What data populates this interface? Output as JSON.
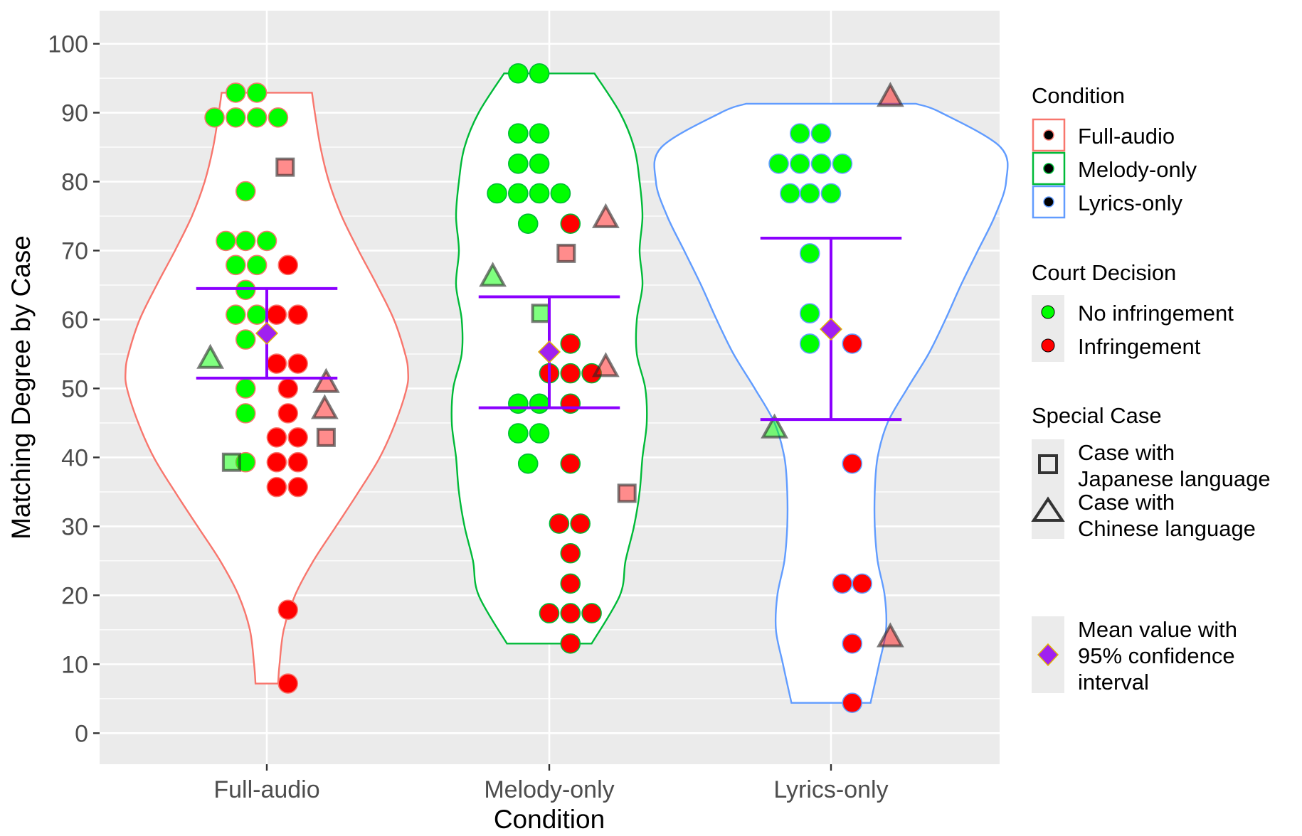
{
  "chart_data": {
    "type": "violin",
    "xlabel": "Condition",
    "ylabel": "Matching Degree by Case",
    "ylim": [
      -4.5,
      104.8
    ],
    "yticks": [
      0,
      10,
      20,
      30,
      40,
      50,
      60,
      70,
      80,
      90,
      100
    ],
    "categories": [
      "Full-audio",
      "Melody-only",
      "Lyrics-only"
    ],
    "grid": true,
    "legend_position": "right",
    "colors": {
      "Full-audio": "#f8766d",
      "Melody-only": "#00ba38",
      "Lyrics-only": "#619cff",
      "no_infringement": "#00ff00",
      "infringement": "#ff0000",
      "mean": "#a020f0",
      "ci": "#8b00ff",
      "panel_bg": "#ebebeb"
    },
    "violins": [
      {
        "condition": "Full-audio",
        "y": [
          7.2,
          10,
          15,
          20,
          25,
          30,
          35,
          40,
          45,
          50,
          52.5,
          55,
          60,
          65,
          70,
          75,
          80,
          85,
          90,
          92.9
        ],
        "half_width": [
          0.04,
          0.045,
          0.06,
          0.1,
          0.165,
          0.245,
          0.325,
          0.4,
          0.455,
          0.495,
          0.5,
          0.49,
          0.45,
          0.39,
          0.325,
          0.265,
          0.22,
          0.19,
          0.17,
          0.16
        ]
      },
      {
        "condition": "Melody-only",
        "y": [
          13,
          20,
          25,
          30,
          35,
          40,
          45,
          50,
          55,
          60,
          65,
          70,
          75,
          80,
          85,
          90,
          95.7
        ],
        "half_width": [
          0.15,
          0.25,
          0.27,
          0.3,
          0.32,
          0.33,
          0.345,
          0.34,
          0.31,
          0.31,
          0.33,
          0.32,
          0.33,
          0.32,
          0.3,
          0.25,
          0.16
        ]
      },
      {
        "condition": "Lyrics-only",
        "y": [
          4.4,
          10,
          15,
          20,
          25,
          30,
          35,
          40,
          45,
          50,
          55,
          60,
          65,
          70,
          75,
          80,
          85,
          90,
          91.3
        ],
        "half_width": [
          0.14,
          0.17,
          0.195,
          0.19,
          0.165,
          0.155,
          0.155,
          0.165,
          0.2,
          0.27,
          0.345,
          0.405,
          0.46,
          0.52,
          0.58,
          0.62,
          0.6,
          0.39,
          0.3
        ]
      }
    ],
    "summaries": [
      {
        "condition": "Full-audio",
        "mean": 58,
        "ci_low": 51.5,
        "ci_high": 64.5
      },
      {
        "condition": "Melody-only",
        "mean": 55.3,
        "ci_low": 47.2,
        "ci_high": 63.3
      },
      {
        "condition": "Lyrics-only",
        "mean": 58.6,
        "ci_low": 45.5,
        "ci_high": 71.8
      }
    ],
    "points": [
      {
        "condition": "Full-audio",
        "x_offset": -0.185,
        "y": 89.3,
        "decision": "no",
        "special": "none"
      },
      {
        "condition": "Full-audio",
        "x_offset": -0.11,
        "y": 89.3,
        "decision": "no",
        "special": "none"
      },
      {
        "condition": "Full-audio",
        "x_offset": -0.035,
        "y": 89.3,
        "decision": "no",
        "special": "none"
      },
      {
        "condition": "Full-audio",
        "x_offset": 0.04,
        "y": 89.3,
        "decision": "no",
        "special": "none"
      },
      {
        "condition": "Full-audio",
        "x_offset": -0.11,
        "y": 92.9,
        "decision": "no",
        "special": "none"
      },
      {
        "condition": "Full-audio",
        "x_offset": -0.035,
        "y": 92.9,
        "decision": "no",
        "special": "none"
      },
      {
        "condition": "Full-audio",
        "x_offset": -0.075,
        "y": 78.6,
        "decision": "no",
        "special": "none"
      },
      {
        "condition": "Full-audio",
        "x_offset": -0.145,
        "y": 71.4,
        "decision": "no",
        "special": "none"
      },
      {
        "condition": "Full-audio",
        "x_offset": -0.075,
        "y": 71.4,
        "decision": "no",
        "special": "none"
      },
      {
        "condition": "Full-audio",
        "x_offset": 0.0,
        "y": 71.4,
        "decision": "no",
        "special": "none"
      },
      {
        "condition": "Full-audio",
        "x_offset": -0.11,
        "y": 67.9,
        "decision": "no",
        "special": "none"
      },
      {
        "condition": "Full-audio",
        "x_offset": -0.035,
        "y": 67.9,
        "decision": "no",
        "special": "none"
      },
      {
        "condition": "Full-audio",
        "x_offset": -0.075,
        "y": 64.3,
        "decision": "no",
        "special": "none"
      },
      {
        "condition": "Full-audio",
        "x_offset": -0.11,
        "y": 60.7,
        "decision": "no",
        "special": "none"
      },
      {
        "condition": "Full-audio",
        "x_offset": -0.035,
        "y": 60.7,
        "decision": "no",
        "special": "none"
      },
      {
        "condition": "Full-audio",
        "x_offset": -0.075,
        "y": 57.1,
        "decision": "no",
        "special": "none"
      },
      {
        "condition": "Full-audio",
        "x_offset": -0.075,
        "y": 50.0,
        "decision": "no",
        "special": "none"
      },
      {
        "condition": "Full-audio",
        "x_offset": -0.075,
        "y": 46.4,
        "decision": "no",
        "special": "none"
      },
      {
        "condition": "Full-audio",
        "x_offset": -0.075,
        "y": 39.3,
        "decision": "no",
        "special": "none"
      },
      {
        "condition": "Full-audio",
        "x_offset": 0.075,
        "y": 67.9,
        "decision": "yes",
        "special": "none"
      },
      {
        "condition": "Full-audio",
        "x_offset": 0.035,
        "y": 60.7,
        "decision": "yes",
        "special": "none"
      },
      {
        "condition": "Full-audio",
        "x_offset": 0.11,
        "y": 60.7,
        "decision": "yes",
        "special": "none"
      },
      {
        "condition": "Full-audio",
        "x_offset": 0.035,
        "y": 53.6,
        "decision": "yes",
        "special": "none"
      },
      {
        "condition": "Full-audio",
        "x_offset": 0.11,
        "y": 53.6,
        "decision": "yes",
        "special": "none"
      },
      {
        "condition": "Full-audio",
        "x_offset": 0.075,
        "y": 50.0,
        "decision": "yes",
        "special": "none"
      },
      {
        "condition": "Full-audio",
        "x_offset": 0.075,
        "y": 46.4,
        "decision": "yes",
        "special": "none"
      },
      {
        "condition": "Full-audio",
        "x_offset": 0.035,
        "y": 42.9,
        "decision": "yes",
        "special": "none"
      },
      {
        "condition": "Full-audio",
        "x_offset": 0.11,
        "y": 42.9,
        "decision": "yes",
        "special": "none"
      },
      {
        "condition": "Full-audio",
        "x_offset": 0.035,
        "y": 39.3,
        "decision": "yes",
        "special": "none"
      },
      {
        "condition": "Full-audio",
        "x_offset": 0.11,
        "y": 39.3,
        "decision": "yes",
        "special": "none"
      },
      {
        "condition": "Full-audio",
        "x_offset": 0.035,
        "y": 35.7,
        "decision": "yes",
        "special": "none"
      },
      {
        "condition": "Full-audio",
        "x_offset": 0.11,
        "y": 35.7,
        "decision": "yes",
        "special": "none"
      },
      {
        "condition": "Full-audio",
        "x_offset": 0.075,
        "y": 17.9,
        "decision": "yes",
        "special": "none"
      },
      {
        "condition": "Full-audio",
        "x_offset": 0.075,
        "y": 7.2,
        "decision": "yes",
        "special": "none"
      },
      {
        "condition": "Full-audio",
        "x_offset": 0.065,
        "y": 82.1,
        "decision": "yes",
        "special": "japanese"
      },
      {
        "condition": "Full-audio",
        "x_offset": 0.21,
        "y": 42.9,
        "decision": "yes",
        "special": "japanese"
      },
      {
        "condition": "Full-audio",
        "x_offset": -0.125,
        "y": 39.3,
        "decision": "no",
        "special": "japanese"
      },
      {
        "condition": "Full-audio",
        "x_offset": -0.2,
        "y": 54.3,
        "decision": "no",
        "special": "chinese"
      },
      {
        "condition": "Full-audio",
        "x_offset": 0.21,
        "y": 50.8,
        "decision": "yes",
        "special": "chinese"
      },
      {
        "condition": "Full-audio",
        "x_offset": 0.205,
        "y": 47.0,
        "decision": "yes",
        "special": "chinese"
      },
      {
        "condition": "Melody-only",
        "x_offset": -0.11,
        "y": 95.7,
        "decision": "no",
        "special": "none"
      },
      {
        "condition": "Melody-only",
        "x_offset": -0.035,
        "y": 95.7,
        "decision": "no",
        "special": "none"
      },
      {
        "condition": "Melody-only",
        "x_offset": -0.11,
        "y": 87.0,
        "decision": "no",
        "special": "none"
      },
      {
        "condition": "Melody-only",
        "x_offset": -0.035,
        "y": 87.0,
        "decision": "no",
        "special": "none"
      },
      {
        "condition": "Melody-only",
        "x_offset": -0.11,
        "y": 82.6,
        "decision": "no",
        "special": "none"
      },
      {
        "condition": "Melody-only",
        "x_offset": -0.035,
        "y": 82.6,
        "decision": "no",
        "special": "none"
      },
      {
        "condition": "Melody-only",
        "x_offset": -0.185,
        "y": 78.3,
        "decision": "no",
        "special": "none"
      },
      {
        "condition": "Melody-only",
        "x_offset": -0.11,
        "y": 78.3,
        "decision": "no",
        "special": "none"
      },
      {
        "condition": "Melody-only",
        "x_offset": -0.035,
        "y": 78.3,
        "decision": "no",
        "special": "none"
      },
      {
        "condition": "Melody-only",
        "x_offset": 0.04,
        "y": 78.3,
        "decision": "no",
        "special": "none"
      },
      {
        "condition": "Melody-only",
        "x_offset": -0.075,
        "y": 73.9,
        "decision": "no",
        "special": "none"
      },
      {
        "condition": "Melody-only",
        "x_offset": -0.11,
        "y": 47.8,
        "decision": "no",
        "special": "none"
      },
      {
        "condition": "Melody-only",
        "x_offset": -0.035,
        "y": 47.8,
        "decision": "no",
        "special": "none"
      },
      {
        "condition": "Melody-only",
        "x_offset": -0.11,
        "y": 43.5,
        "decision": "no",
        "special": "none"
      },
      {
        "condition": "Melody-only",
        "x_offset": -0.035,
        "y": 43.5,
        "decision": "no",
        "special": "none"
      },
      {
        "condition": "Melody-only",
        "x_offset": -0.075,
        "y": 39.1,
        "decision": "no",
        "special": "none"
      },
      {
        "condition": "Melody-only",
        "x_offset": 0.075,
        "y": 73.9,
        "decision": "yes",
        "special": "none"
      },
      {
        "condition": "Melody-only",
        "x_offset": 0.075,
        "y": 56.5,
        "decision": "yes",
        "special": "none"
      },
      {
        "condition": "Melody-only",
        "x_offset": 0.0,
        "y": 52.2,
        "decision": "yes",
        "special": "none"
      },
      {
        "condition": "Melody-only",
        "x_offset": 0.075,
        "y": 52.2,
        "decision": "yes",
        "special": "none"
      },
      {
        "condition": "Melody-only",
        "x_offset": 0.15,
        "y": 52.2,
        "decision": "yes",
        "special": "none"
      },
      {
        "condition": "Melody-only",
        "x_offset": 0.075,
        "y": 47.8,
        "decision": "yes",
        "special": "none"
      },
      {
        "condition": "Melody-only",
        "x_offset": 0.075,
        "y": 39.1,
        "decision": "yes",
        "special": "none"
      },
      {
        "condition": "Melody-only",
        "x_offset": 0.035,
        "y": 30.4,
        "decision": "yes",
        "special": "none"
      },
      {
        "condition": "Melody-only",
        "x_offset": 0.11,
        "y": 30.4,
        "decision": "yes",
        "special": "none"
      },
      {
        "condition": "Melody-only",
        "x_offset": 0.075,
        "y": 26.1,
        "decision": "yes",
        "special": "none"
      },
      {
        "condition": "Melody-only",
        "x_offset": 0.075,
        "y": 21.7,
        "decision": "yes",
        "special": "none"
      },
      {
        "condition": "Melody-only",
        "x_offset": 0.0,
        "y": 17.4,
        "decision": "yes",
        "special": "none"
      },
      {
        "condition": "Melody-only",
        "x_offset": 0.075,
        "y": 17.4,
        "decision": "yes",
        "special": "none"
      },
      {
        "condition": "Melody-only",
        "x_offset": 0.15,
        "y": 17.4,
        "decision": "yes",
        "special": "none"
      },
      {
        "condition": "Melody-only",
        "x_offset": 0.075,
        "y": 13.0,
        "decision": "yes",
        "special": "none"
      },
      {
        "condition": "Melody-only",
        "x_offset": 0.06,
        "y": 69.6,
        "decision": "yes",
        "special": "japanese"
      },
      {
        "condition": "Melody-only",
        "x_offset": -0.03,
        "y": 60.9,
        "decision": "no",
        "special": "japanese"
      },
      {
        "condition": "Melody-only",
        "x_offset": 0.275,
        "y": 34.8,
        "decision": "yes",
        "special": "japanese"
      },
      {
        "condition": "Melody-only",
        "x_offset": -0.2,
        "y": 66.2,
        "decision": "no",
        "special": "chinese"
      },
      {
        "condition": "Melody-only",
        "x_offset": 0.2,
        "y": 74.7,
        "decision": "yes",
        "special": "chinese"
      },
      {
        "condition": "Melody-only",
        "x_offset": 0.2,
        "y": 53.1,
        "decision": "yes",
        "special": "chinese"
      },
      {
        "condition": "Lyrics-only",
        "x_offset": -0.11,
        "y": 87.0,
        "decision": "no",
        "special": "none"
      },
      {
        "condition": "Lyrics-only",
        "x_offset": -0.035,
        "y": 87.0,
        "decision": "no",
        "special": "none"
      },
      {
        "condition": "Lyrics-only",
        "x_offset": -0.185,
        "y": 82.6,
        "decision": "no",
        "special": "none"
      },
      {
        "condition": "Lyrics-only",
        "x_offset": -0.11,
        "y": 82.6,
        "decision": "no",
        "special": "none"
      },
      {
        "condition": "Lyrics-only",
        "x_offset": -0.035,
        "y": 82.6,
        "decision": "no",
        "special": "none"
      },
      {
        "condition": "Lyrics-only",
        "x_offset": 0.04,
        "y": 82.6,
        "decision": "no",
        "special": "none"
      },
      {
        "condition": "Lyrics-only",
        "x_offset": -0.145,
        "y": 78.3,
        "decision": "no",
        "special": "none"
      },
      {
        "condition": "Lyrics-only",
        "x_offset": -0.075,
        "y": 78.3,
        "decision": "no",
        "special": "none"
      },
      {
        "condition": "Lyrics-only",
        "x_offset": 0.0,
        "y": 78.3,
        "decision": "no",
        "special": "none"
      },
      {
        "condition": "Lyrics-only",
        "x_offset": -0.075,
        "y": 69.6,
        "decision": "no",
        "special": "none"
      },
      {
        "condition": "Lyrics-only",
        "x_offset": -0.075,
        "y": 60.9,
        "decision": "no",
        "special": "none"
      },
      {
        "condition": "Lyrics-only",
        "x_offset": -0.075,
        "y": 56.5,
        "decision": "no",
        "special": "none"
      },
      {
        "condition": "Lyrics-only",
        "x_offset": 0.075,
        "y": 56.5,
        "decision": "yes",
        "special": "none"
      },
      {
        "condition": "Lyrics-only",
        "x_offset": 0.075,
        "y": 39.1,
        "decision": "yes",
        "special": "none"
      },
      {
        "condition": "Lyrics-only",
        "x_offset": 0.04,
        "y": 21.7,
        "decision": "yes",
        "special": "none"
      },
      {
        "condition": "Lyrics-only",
        "x_offset": 0.11,
        "y": 21.7,
        "decision": "yes",
        "special": "none"
      },
      {
        "condition": "Lyrics-only",
        "x_offset": 0.075,
        "y": 13.0,
        "decision": "yes",
        "special": "none"
      },
      {
        "condition": "Lyrics-only",
        "x_offset": 0.075,
        "y": 4.4,
        "decision": "yes",
        "special": "none"
      },
      {
        "condition": "Lyrics-only",
        "x_offset": -0.2,
        "y": 44.2,
        "decision": "no",
        "special": "chinese"
      },
      {
        "condition": "Lyrics-only",
        "x_offset": 0.21,
        "y": 92.3,
        "decision": "yes",
        "special": "chinese"
      },
      {
        "condition": "Lyrics-only",
        "x_offset": 0.21,
        "y": 13.9,
        "decision": "yes",
        "special": "chinese"
      }
    ]
  },
  "legend": {
    "condition": {
      "title": "Condition",
      "items": [
        {
          "label": "Full-audio"
        },
        {
          "label": "Melody-only"
        },
        {
          "label": "Lyrics-only"
        }
      ]
    },
    "decision": {
      "title": "Court Decision",
      "items": [
        {
          "label": "No infringement"
        },
        {
          "label": "Infringement"
        }
      ]
    },
    "special": {
      "title": "Special Case",
      "items": [
        {
          "label_line1": "Case with",
          "label_line2": "Japanese language"
        },
        {
          "label_line1": "Case with",
          "label_line2": "Chinese language"
        }
      ]
    },
    "mean": {
      "label_line1": "Mean value with",
      "label_line2": "95% confidence",
      "label_line3": "interval"
    }
  }
}
